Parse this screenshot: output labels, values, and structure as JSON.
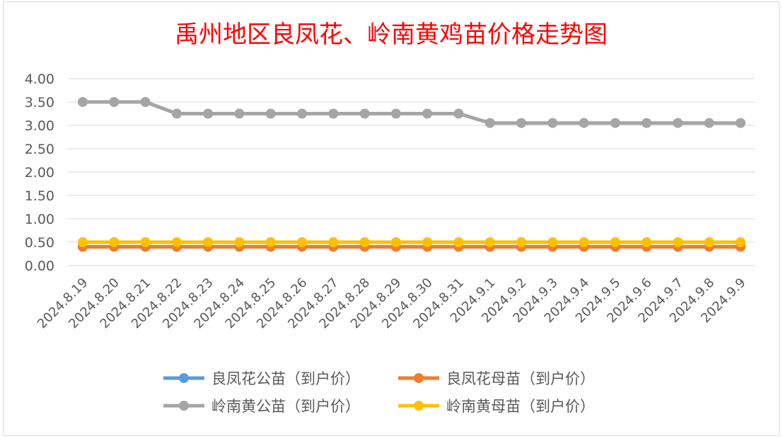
{
  "chart_data": {
    "type": "line",
    "title": "禹州地区良凤花、岭南黄鸡苗价格走势图",
    "xlabel": "",
    "ylabel": "",
    "ylim": [
      0,
      4
    ],
    "yticks": [
      "0.00",
      "0.50",
      "1.00",
      "1.50",
      "2.00",
      "2.50",
      "3.00",
      "3.50",
      "4.00"
    ],
    "grid": true,
    "legend_position": "bottom",
    "x": [
      "2024.8.19",
      "2024.8.20",
      "2024.8.21",
      "2024.8.22",
      "2024.8.23",
      "2024.8.24",
      "2024.8.25",
      "2024.8.26",
      "2024.8.27",
      "2024.8.28",
      "2024.8.29",
      "2024.8.30",
      "2024.8.31",
      "2024.9.1",
      "2024.9.2",
      "2024.9.3",
      "2024.9.4",
      "2024.9.5",
      "2024.9.6",
      "2024.9.7",
      "2024.9.8",
      "2024.9.9"
    ],
    "series": [
      {
        "name": "良凤花公苗（到户价）",
        "color": "#5b9bd5",
        "values": [
          0.4,
          0.4,
          0.4,
          0.4,
          0.4,
          0.4,
          0.4,
          0.4,
          0.4,
          0.4,
          0.4,
          0.4,
          0.4,
          0.4,
          0.4,
          0.4,
          0.4,
          0.4,
          0.4,
          0.4,
          0.4,
          0.4
        ]
      },
      {
        "name": "良凤花母苗（到户价）",
        "color": "#ed7d31",
        "values": [
          0.4,
          0.4,
          0.4,
          0.4,
          0.4,
          0.4,
          0.4,
          0.4,
          0.4,
          0.4,
          0.4,
          0.4,
          0.4,
          0.4,
          0.4,
          0.4,
          0.4,
          0.4,
          0.4,
          0.4,
          0.4,
          0.4
        ]
      },
      {
        "name": "岭南黄公苗（到户价）",
        "color": "#a5a5a5",
        "values": [
          3.5,
          3.5,
          3.5,
          3.25,
          3.25,
          3.25,
          3.25,
          3.25,
          3.25,
          3.25,
          3.25,
          3.25,
          3.25,
          3.05,
          3.05,
          3.05,
          3.05,
          3.05,
          3.05,
          3.05,
          3.05,
          3.05
        ]
      },
      {
        "name": "岭南黄母苗（到户价）",
        "color": "#ffc000",
        "values": [
          0.5,
          0.5,
          0.5,
          0.5,
          0.5,
          0.5,
          0.5,
          0.5,
          0.5,
          0.5,
          0.5,
          0.5,
          0.5,
          0.5,
          0.5,
          0.5,
          0.5,
          0.5,
          0.5,
          0.5,
          0.5,
          0.5
        ]
      }
    ]
  }
}
